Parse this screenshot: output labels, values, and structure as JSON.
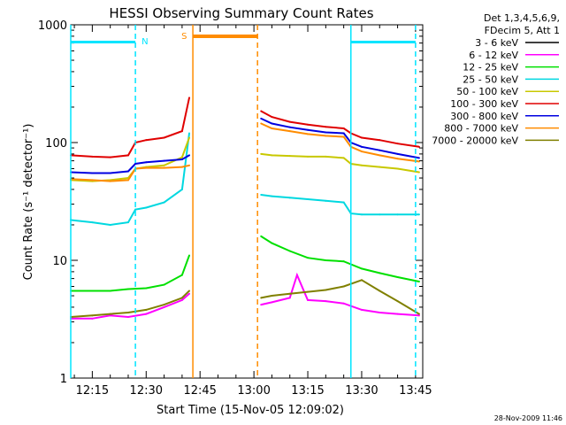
{
  "chart_data": {
    "type": "line",
    "title": "HESSI Observing Summary Count Rates",
    "xlabel": "Start Time (15-Nov-05 12:09:02)",
    "ylabel": "Count Rate (s⁻¹ detector⁻¹)",
    "ylog": true,
    "ylim": [
      1,
      1000
    ],
    "xlim": [
      "12:09",
      "13:47"
    ],
    "x_ticks": [
      "12:15",
      "12:30",
      "12:45",
      "13:00",
      "13:15",
      "13:30",
      "13:45"
    ],
    "y_ticks": [
      "1",
      "10",
      "100",
      "1000"
    ],
    "legend_header": [
      "Det 1,3,4,5,6,9,",
      "FDecim 5, Att 1"
    ],
    "legend_position": "top-right, outside plot",
    "footer_date": "28-Nov-2009 11:46",
    "annotations": [
      {
        "text": "N",
        "color": "#00e5ff"
      },
      {
        "text": "S",
        "color": "#ff8c00"
      }
    ],
    "flags": {
      "night_solid_lines": [
        "12:09",
        "13:27"
      ],
      "night_dashed_lines": [
        "12:27",
        "13:45"
      ],
      "night_bars": [
        [
          "12:09",
          "12:27"
        ],
        [
          "13:27",
          "13:45"
        ]
      ],
      "saa_solid_line": "12:43",
      "saa_dashed_line": "13:01",
      "saa_bar": [
        "12:43",
        "13:01"
      ]
    },
    "series": [
      {
        "name": "3 - 6 keV",
        "color": "#000000",
        "x": [],
        "y": []
      },
      {
        "name": "6 - 12 keV",
        "color": "#ff00ff",
        "x": [
          "12:09",
          "12:15",
          "12:20",
          "12:25",
          "12:30",
          "12:35",
          "12:40",
          "12:42",
          "13:02",
          "13:05",
          "13:10",
          "13:12",
          "13:15",
          "13:20",
          "13:25",
          "13:30",
          "13:35",
          "13:40",
          "13:46"
        ],
        "y": [
          3.2,
          3.2,
          3.4,
          3.3,
          3.5,
          4.0,
          4.6,
          5.2,
          4.2,
          4.4,
          4.8,
          7.5,
          4.6,
          4.5,
          4.3,
          3.8,
          3.6,
          3.5,
          3.4
        ]
      },
      {
        "name": "12 - 25 keV",
        "color": "#00e000",
        "x": [
          "12:09",
          "12:15",
          "12:20",
          "12:25",
          "12:30",
          "12:35",
          "12:40",
          "12:42",
          "13:02",
          "13:05",
          "13:10",
          "13:15",
          "13:20",
          "13:25",
          "13:30",
          "13:35",
          "13:40",
          "13:46"
        ],
        "y": [
          5.5,
          5.5,
          5.5,
          5.7,
          5.8,
          6.2,
          7.5,
          11,
          16,
          14,
          12,
          10.5,
          10,
          9.8,
          8.5,
          7.8,
          7.2,
          6.6
        ]
      },
      {
        "name": "25 - 50 keV",
        "color": "#00d8e0",
        "x": [
          "12:09",
          "12:15",
          "12:20",
          "12:25",
          "12:27",
          "12:30",
          "12:35",
          "12:40",
          "12:42",
          "13:02",
          "13:05",
          "13:10",
          "13:15",
          "13:20",
          "13:25",
          "13:27",
          "13:30",
          "13:35",
          "13:40",
          "13:46"
        ],
        "y": [
          22,
          21,
          20,
          21,
          27,
          28,
          31,
          40,
          120,
          36,
          35,
          34,
          33,
          32,
          31,
          25,
          24.5,
          24.5,
          24.5,
          24.5
        ]
      },
      {
        "name": "50 - 100 keV",
        "color": "#c8c800",
        "x": [
          "12:09",
          "12:15",
          "12:20",
          "12:25",
          "12:27",
          "12:30",
          "12:35",
          "12:40",
          "12:42",
          "13:02",
          "13:05",
          "13:10",
          "13:15",
          "13:20",
          "13:25",
          "13:27",
          "13:30",
          "13:35",
          "13:40",
          "13:46"
        ],
        "y": [
          48,
          47,
          48,
          50,
          60,
          62,
          64,
          75,
          110,
          80,
          78,
          77,
          76,
          76,
          74,
          66,
          64,
          62,
          60,
          56
        ]
      },
      {
        "name": "100 - 300 keV",
        "color": "#e00000",
        "x": [
          "12:09",
          "12:15",
          "12:20",
          "12:25",
          "12:27",
          "12:30",
          "12:35",
          "12:40",
          "12:42",
          "13:02",
          "13:05",
          "13:10",
          "13:15",
          "13:20",
          "13:25",
          "13:27",
          "13:30",
          "13:35",
          "13:40",
          "13:46"
        ],
        "y": [
          78,
          76,
          75,
          78,
          100,
          105,
          110,
          125,
          240,
          185,
          165,
          150,
          142,
          136,
          132,
          120,
          110,
          105,
          98,
          92
        ]
      },
      {
        "name": "300 - 800 keV",
        "color": "#0000e0",
        "x": [
          "12:09",
          "12:15",
          "12:20",
          "12:25",
          "12:27",
          "12:30",
          "12:35",
          "12:40",
          "12:42",
          "13:02",
          "13:05",
          "13:10",
          "13:15",
          "13:20",
          "13:25",
          "13:27",
          "13:30",
          "13:35",
          "13:40",
          "13:46"
        ],
        "y": [
          56,
          55,
          55,
          57,
          66,
          68,
          70,
          72,
          78,
          160,
          145,
          135,
          128,
          122,
          120,
          100,
          92,
          86,
          80,
          74
        ]
      },
      {
        "name": "800 - 7000 keV",
        "color": "#ff8c00",
        "x": [
          "12:09",
          "12:15",
          "12:20",
          "12:25",
          "12:27",
          "12:30",
          "12:35",
          "12:40",
          "12:42",
          "13:02",
          "13:05",
          "13:10",
          "13:15",
          "13:20",
          "13:25",
          "13:27",
          "13:30",
          "13:35",
          "13:40",
          "13:46"
        ],
        "y": [
          49,
          48,
          47,
          48,
          60,
          61,
          61,
          62,
          64,
          145,
          132,
          125,
          118,
          114,
          112,
          92,
          84,
          78,
          73,
          69
        ]
      },
      {
        "name": "7000 - 20000 keV",
        "color": "#808000",
        "x": [
          "12:09",
          "12:15",
          "12:20",
          "12:25",
          "12:30",
          "12:35",
          "12:40",
          "12:42",
          "13:02",
          "13:05",
          "13:10",
          "13:15",
          "13:20",
          "13:25",
          "13:30",
          "13:35",
          "13:40",
          "13:46"
        ],
        "y": [
          3.3,
          3.4,
          3.5,
          3.6,
          3.8,
          4.2,
          4.8,
          5.5,
          4.8,
          5.0,
          5.2,
          5.4,
          5.6,
          6.0,
          6.8,
          5.5,
          4.5,
          3.5
        ]
      }
    ]
  }
}
